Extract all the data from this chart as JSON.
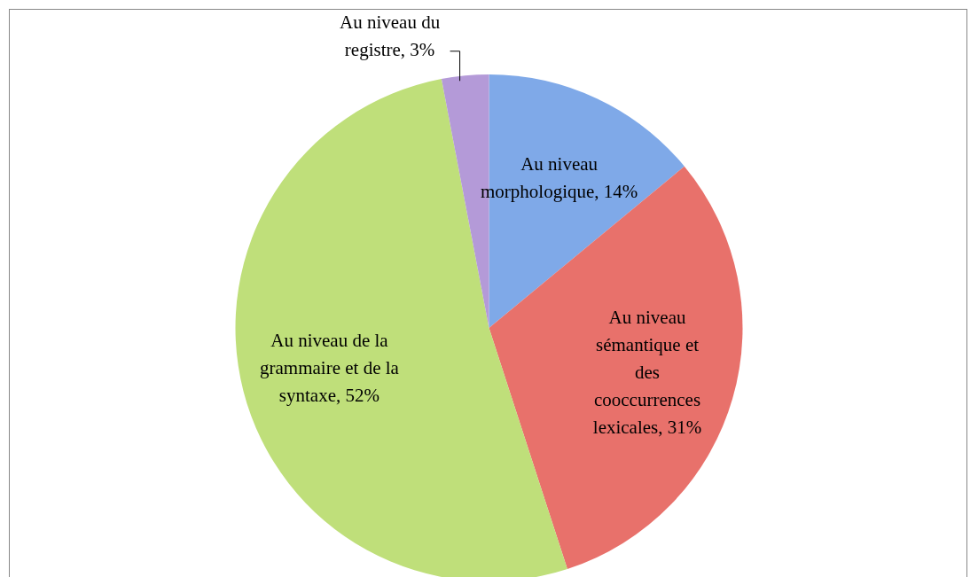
{
  "chart_data": {
    "type": "pie",
    "categories": [
      "Au niveau morphologique",
      "Au niveau sémantique et des cooccurrences lexicales",
      "Au niveau de la grammaire et de la syntaxe",
      "Au niveau du registre"
    ],
    "values": [
      14,
      31,
      52,
      3
    ],
    "value_labels": [
      "14%",
      "31%",
      "52%",
      "3%"
    ],
    "colors": [
      "#7fa9e8",
      "#e8716b",
      "#bfdf7a",
      "#b49ad8"
    ]
  }
}
